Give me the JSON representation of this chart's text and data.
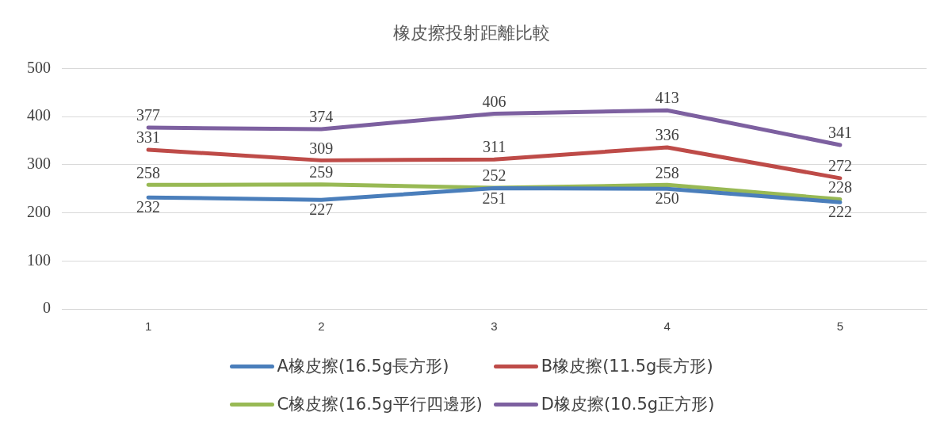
{
  "chart_data": {
    "type": "line",
    "title": "橡皮擦投射距離比較",
    "categories": [
      "1",
      "2",
      "3",
      "4",
      "5"
    ],
    "series": [
      {
        "name": "A橡皮擦(16.5g長方形)",
        "color": "#4a7ebb",
        "values": [
          232,
          227,
          251,
          250,
          222
        ]
      },
      {
        "name": "B橡皮擦(11.5g長方形)",
        "color": "#be4b48",
        "values": [
          331,
          309,
          311,
          336,
          272
        ]
      },
      {
        "name": "C橡皮擦(16.5g平行四邊形)",
        "color": "#98b954",
        "values": [
          258,
          259,
          252,
          258,
          228
        ]
      },
      {
        "name": "D橡皮擦(10.5g正方形)",
        "color": "#7d60a0",
        "values": [
          377,
          374,
          406,
          413,
          341
        ]
      }
    ],
    "ylim": [
      0,
      500
    ],
    "yticks": [
      0,
      100,
      200,
      300,
      400,
      500
    ],
    "grid": "y",
    "legend": "bottom",
    "marker": "none",
    "line_style": "solid",
    "data_labels": true
  }
}
